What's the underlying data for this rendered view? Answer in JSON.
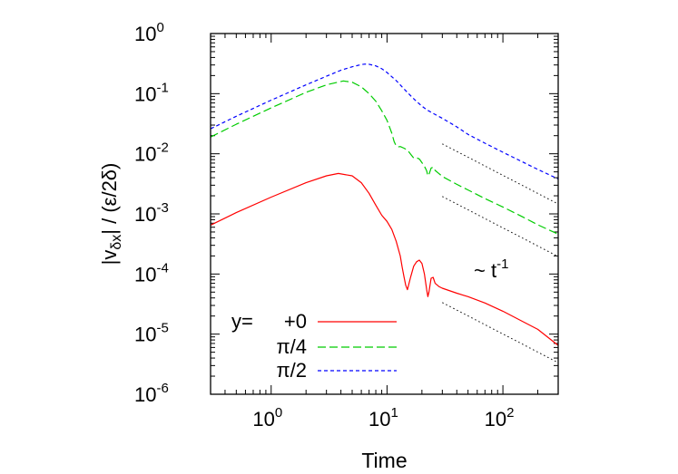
{
  "chart_data": {
    "type": "line",
    "xlabel": "Time",
    "ylabel": {
      "prefix": "|v",
      "subscript": "δx",
      "suffix": "| / (ε/2δ)"
    },
    "xscale": "log",
    "yscale": "log",
    "xlim": [
      0.3,
      300
    ],
    "ylim": [
      1e-06,
      1
    ],
    "x_ticks": [
      {
        "value": 1,
        "base": "10",
        "exp": "0"
      },
      {
        "value": 10,
        "base": "10",
        "exp": "1"
      },
      {
        "value": 100,
        "base": "10",
        "exp": "2"
      }
    ],
    "y_ticks": [
      {
        "value": 1,
        "base": "10",
        "exp": "0"
      },
      {
        "value": 0.1,
        "base": "10",
        "exp": "-1"
      },
      {
        "value": 0.01,
        "base": "10",
        "exp": "-2"
      },
      {
        "value": 0.001,
        "base": "10",
        "exp": "-3"
      },
      {
        "value": 0.0001,
        "base": "10",
        "exp": "-4"
      },
      {
        "value": 1e-05,
        "base": "10",
        "exp": "-5"
      },
      {
        "value": 1e-06,
        "base": "10",
        "exp": "-6"
      }
    ],
    "grid": false,
    "legend_position": "bottom-left",
    "legend_prefix": "y=",
    "annotation": {
      "text": "~ t",
      "exp": "-1"
    },
    "series": [
      {
        "name": "+0",
        "color": "#ff0000",
        "dash": "solid",
        "x": [
          0.3,
          0.5,
          1,
          2,
          3,
          3.8,
          5,
          6,
          7,
          8,
          9,
          10,
          11,
          12,
          13,
          13.5,
          14,
          14.5,
          15,
          16,
          17,
          18,
          19,
          20,
          21,
          22,
          22.5,
          23,
          24,
          25,
          26,
          28,
          30,
          40,
          50,
          70,
          100,
          150,
          200,
          300
        ],
        "y": [
          0.00065,
          0.00105,
          0.0019,
          0.0033,
          0.0043,
          0.0047,
          0.0043,
          0.0033,
          0.0022,
          0.0014,
          0.00095,
          0.00075,
          0.00055,
          0.00035,
          0.0002,
          0.00013,
          9e-05,
          6.5e-05,
          5.5e-05,
          9e-05,
          0.000135,
          0.00016,
          0.00017,
          0.00015,
          0.0001,
          5.5e-05,
          4.2e-05,
          5e-05,
          8.5e-05,
          8.8e-05,
          7e-05,
          6.2e-05,
          5.8e-05,
          4.8e-05,
          4.2e-05,
          3.3e-05,
          2.4e-05,
          1.6e-05,
          1.2e-05,
          6.5e-06
        ]
      },
      {
        "name": "π/4",
        "color": "#00cc00",
        "dash": "long",
        "x": [
          0.3,
          0.5,
          1,
          2,
          3,
          4.2,
          5,
          6,
          7,
          8,
          9,
          10,
          11,
          11.5,
          12,
          12.5,
          13,
          14,
          15,
          16,
          17,
          18,
          19,
          20,
          21,
          22,
          22.5,
          23,
          24,
          25,
          26,
          28,
          30,
          40,
          50,
          70,
          100,
          150,
          200,
          300
        ],
        "y": [
          0.019,
          0.031,
          0.058,
          0.105,
          0.14,
          0.163,
          0.155,
          0.13,
          0.1,
          0.075,
          0.052,
          0.036,
          0.022,
          0.016,
          0.0135,
          0.013,
          0.0132,
          0.0124,
          0.0115,
          0.0098,
          0.0085,
          0.0086,
          0.0082,
          0.0071,
          0.0062,
          0.0052,
          0.0043,
          0.0045,
          0.0058,
          0.006,
          0.0053,
          0.0047,
          0.0042,
          0.0031,
          0.0025,
          0.0018,
          0.0013,
          0.00088,
          0.00066,
          0.00046
        ]
      },
      {
        "name": "π/2",
        "color": "#0000ff",
        "dash": "short",
        "x": [
          0.3,
          0.5,
          1,
          2,
          3,
          4,
          5,
          6,
          6.5,
          7,
          8,
          9,
          10,
          12,
          14,
          16,
          18,
          20,
          22,
          25,
          30,
          40,
          50,
          70,
          100,
          150,
          200,
          300
        ],
        "y": [
          0.026,
          0.042,
          0.078,
          0.14,
          0.195,
          0.245,
          0.28,
          0.305,
          0.31,
          0.308,
          0.29,
          0.26,
          0.225,
          0.165,
          0.12,
          0.092,
          0.074,
          0.062,
          0.054,
          0.047,
          0.039,
          0.028,
          0.021,
          0.015,
          0.0106,
          0.0072,
          0.0055,
          0.0038
        ]
      }
    ],
    "reference_lines": [
      {
        "color": "#000000",
        "dash": "dotted",
        "x": [
          30,
          300
        ],
        "y": [
          0.0146,
          0.00146
        ]
      },
      {
        "color": "#000000",
        "dash": "dotted",
        "x": [
          30,
          300
        ],
        "y": [
          0.00195,
          0.000195
        ]
      },
      {
        "color": "#000000",
        "dash": "dotted",
        "x": [
          30,
          300
        ],
        "y": [
          3.35e-05,
          3.35e-06
        ]
      }
    ]
  }
}
